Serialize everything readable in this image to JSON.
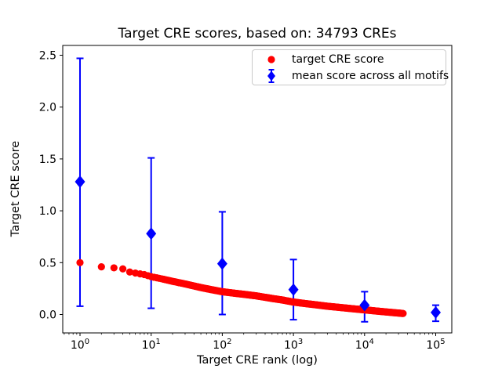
{
  "chart_data": {
    "type": "scatter",
    "title": "Target CRE scores, based on: 34793 CREs",
    "xlabel": "Target CRE rank (log)",
    "ylabel": "Target CRE score",
    "x_scale": "log",
    "grid": false,
    "xlim_log10": [
      -0.2425,
      5.226
    ],
    "ylim": [
      -0.1775,
      2.5944
    ],
    "x_major_ticks": [
      {
        "value": 1,
        "base": "10",
        "exp": "0"
      },
      {
        "value": 10,
        "base": "10",
        "exp": "1"
      },
      {
        "value": 100,
        "base": "10",
        "exp": "2"
      },
      {
        "value": 1000,
        "base": "10",
        "exp": "3"
      },
      {
        "value": 10000,
        "base": "10",
        "exp": "4"
      },
      {
        "value": 100000,
        "base": "10",
        "exp": "5"
      }
    ],
    "y_ticks": [
      {
        "value": 0.0,
        "label": "0.0"
      },
      {
        "value": 0.5,
        "label": "0.5"
      },
      {
        "value": 1.0,
        "label": "1.0"
      },
      {
        "value": 1.5,
        "label": "1.5"
      },
      {
        "value": 2.0,
        "label": "2.0"
      },
      {
        "value": 2.5,
        "label": "2.5"
      }
    ],
    "legend": {
      "position": "upper right"
    },
    "series": [
      {
        "name": "target CRE score",
        "type": "scatter",
        "marker": "circle",
        "color": "#ff0000",
        "rank_max": 34793,
        "points": [
          [
            1,
            0.5
          ],
          [
            2,
            0.46
          ],
          [
            3,
            0.45
          ],
          [
            4,
            0.44
          ],
          [
            5,
            0.41
          ],
          [
            6,
            0.4
          ],
          [
            8,
            0.385
          ],
          [
            10,
            0.365
          ],
          [
            15,
            0.34
          ],
          [
            20,
            0.32
          ],
          [
            30,
            0.295
          ],
          [
            50,
            0.26
          ],
          [
            70,
            0.24
          ],
          [
            100,
            0.22
          ],
          [
            150,
            0.205
          ],
          [
            200,
            0.195
          ],
          [
            300,
            0.18
          ],
          [
            500,
            0.155
          ],
          [
            700,
            0.14
          ],
          [
            1000,
            0.12
          ],
          [
            1500,
            0.105
          ],
          [
            2000,
            0.095
          ],
          [
            3000,
            0.08
          ],
          [
            5000,
            0.065
          ],
          [
            7000,
            0.055
          ],
          [
            10000,
            0.045
          ],
          [
            15000,
            0.033
          ],
          [
            20000,
            0.025
          ],
          [
            34793,
            0.01
          ]
        ]
      },
      {
        "name": "mean score across all motifs",
        "type": "errorbar",
        "marker": "diamond",
        "color": "#0000ff",
        "points": [
          {
            "x": 1,
            "y": 1.28,
            "lo": 0.08,
            "hi": 2.47
          },
          {
            "x": 10,
            "y": 0.78,
            "lo": 0.06,
            "hi": 1.51
          },
          {
            "x": 100,
            "y": 0.49,
            "lo": 0.0,
            "hi": 0.99
          },
          {
            "x": 1000,
            "y": 0.24,
            "lo": -0.05,
            "hi": 0.53
          },
          {
            "x": 10000,
            "y": 0.09,
            "lo": -0.07,
            "hi": 0.22
          },
          {
            "x": 100000,
            "y": 0.02,
            "lo": -0.065,
            "hi": 0.09
          }
        ]
      }
    ]
  }
}
